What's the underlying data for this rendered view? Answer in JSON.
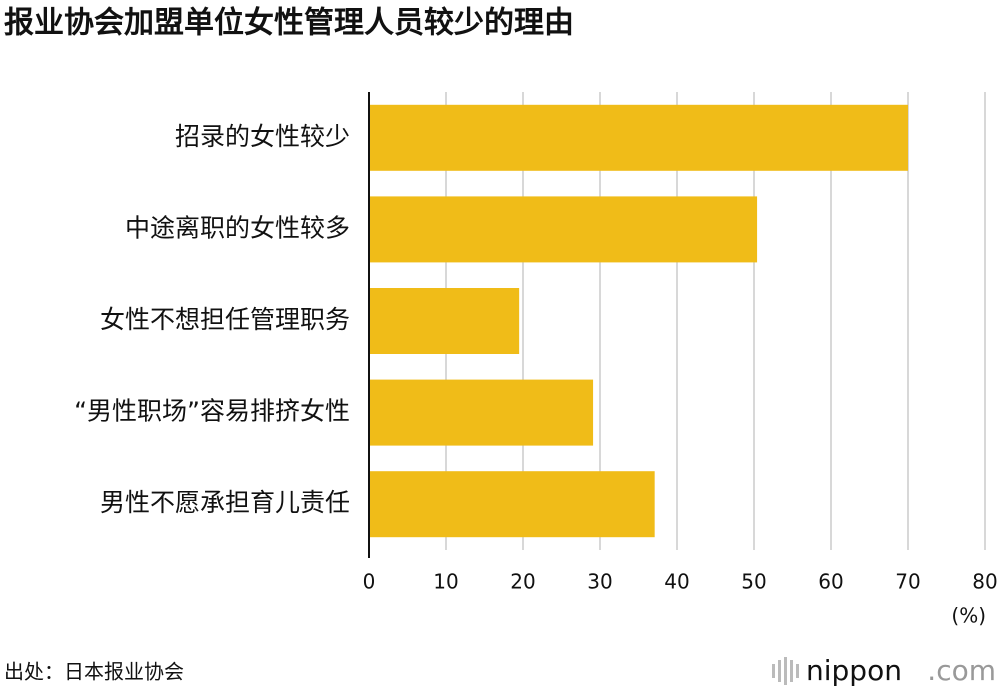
{
  "chart_data": {
    "type": "hbar",
    "title": "报业协会加盟单位女性管理人员较少的理由",
    "categories": [
      "招录的女性较少",
      "中途离职的女性较多",
      "女性不想担任管理职务",
      "“男性职场”容易排挤女性",
      "男性不愿承担育儿责任"
    ],
    "values": [
      70,
      50.4,
      19.5,
      29.1,
      37.1
    ],
    "color": "#f0bc18",
    "xlim": [
      0,
      80
    ],
    "xticks": [
      0,
      10,
      20,
      30,
      40,
      50,
      60,
      70,
      80
    ],
    "x_unit": "(%)",
    "grid": true,
    "source": "出处：日本报业协会",
    "logo": {
      "name": "nippon",
      "suffix": ".com"
    }
  }
}
